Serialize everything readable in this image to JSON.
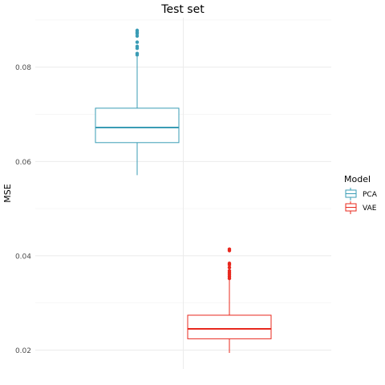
{
  "chart_data": {
    "type": "boxplot",
    "title": "Test set",
    "xlabel": "",
    "ylabel": "MSE",
    "ylim": [
      0.016,
      0.0905
    ],
    "y_ticks": [
      0.02,
      0.04,
      0.06,
      0.08
    ],
    "y_tick_labels": [
      "0.02",
      "0.04",
      "0.06",
      "0.08"
    ],
    "grid": true,
    "legend": {
      "title": "Model",
      "position": "right",
      "entries": [
        "PCA",
        "VAE"
      ]
    },
    "series": [
      {
        "name": "PCA",
        "color": "#3A9CB5",
        "whisker_low": 0.0571,
        "q1": 0.064,
        "median": 0.0672,
        "q3": 0.0713,
        "whisker_high": 0.0822,
        "outliers": [
          0.0826,
          0.0829,
          0.084,
          0.0844,
          0.0853,
          0.0866,
          0.0871,
          0.0874,
          0.0878
        ]
      },
      {
        "name": "VAE",
        "color": "#E8281E",
        "whisker_low": 0.0194,
        "q1": 0.0224,
        "median": 0.0245,
        "q3": 0.0274,
        "whisker_high": 0.0349,
        "outliers": [
          0.0352,
          0.0356,
          0.036,
          0.0364,
          0.0368,
          0.0375,
          0.0381,
          0.0384,
          0.0411,
          0.0414
        ]
      }
    ]
  }
}
